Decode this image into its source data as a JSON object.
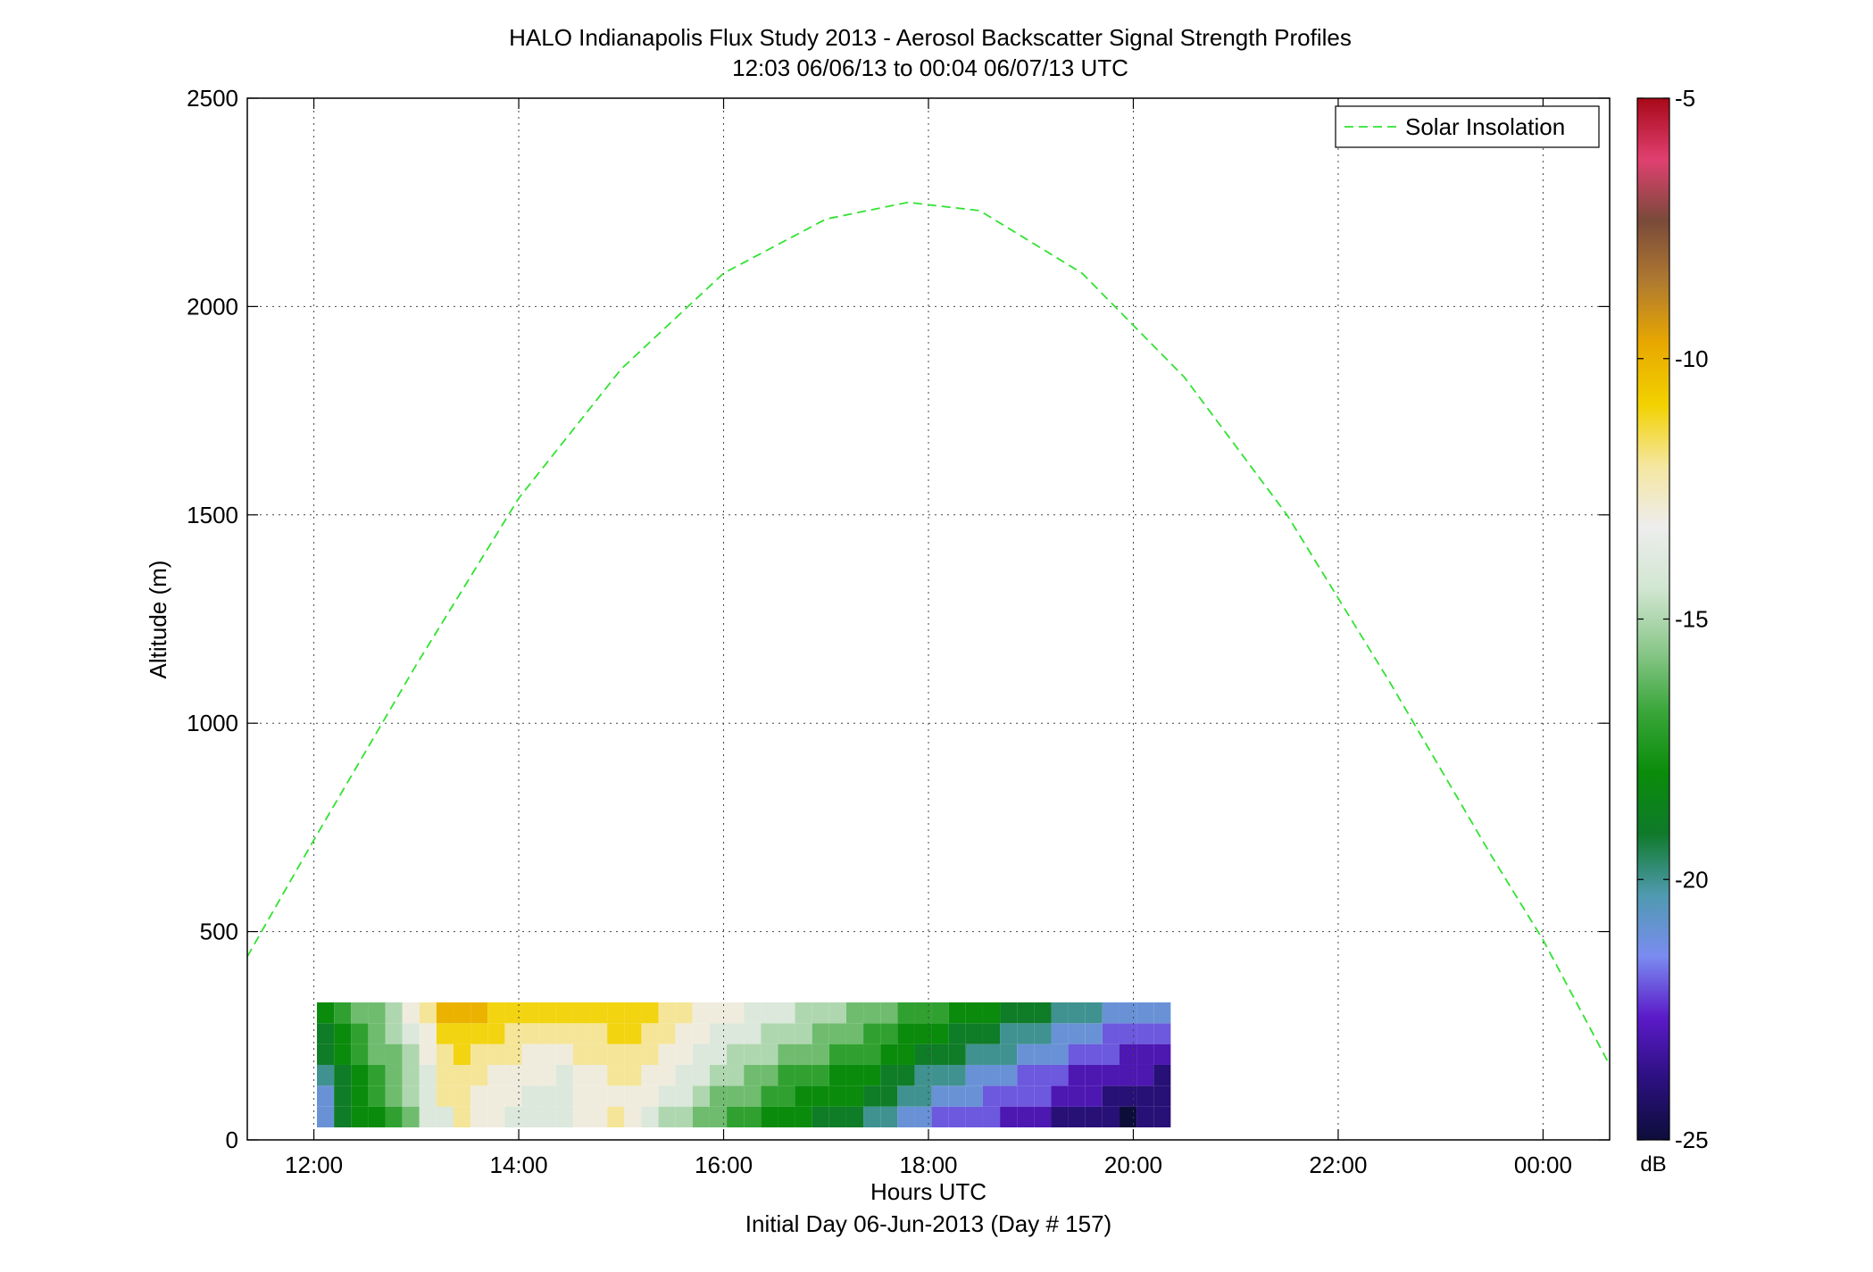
{
  "chart_data": {
    "type": "heatmap",
    "title": "HALO Indianapolis Flux Study 2013 - Aerosol Backscatter Signal Strength Profiles",
    "subtitle": "12:03 06/06/13 to 00:04 06/07/13  UTC",
    "xlabel": "Hours UTC",
    "xlabel2": "Initial Day 06-Jun-2013 (Day # 157)",
    "ylabel": "Altitude (m)",
    "xlim": [
      11.35,
      24.65
    ],
    "ylim": [
      0,
      2500
    ],
    "x_ticks": [
      12,
      14,
      16,
      18,
      20,
      22,
      24
    ],
    "x_tick_labels": [
      "12:00",
      "14:00",
      "16:00",
      "18:00",
      "20:00",
      "22:00",
      "00:00"
    ],
    "y_ticks": [
      0,
      500,
      1000,
      1500,
      2000,
      2500
    ],
    "y_tick_labels": [
      "0",
      "500",
      "1000",
      "1500",
      "2000",
      "2500"
    ],
    "grid": true,
    "legend": {
      "placement": "top-right",
      "entries": [
        "Solar Insolation"
      ]
    },
    "colorbar": {
      "label": "dB",
      "range": [
        -25,
        -5
      ],
      "ticks": [
        -5,
        -10,
        -15,
        -20,
        -25
      ],
      "tick_labels": [
        "-5",
        "-10",
        "-15",
        "-20",
        "-25"
      ],
      "colors": [
        "#0d0d3a",
        "#2c1080",
        "#5b1ac8",
        "#7a8cf0",
        "#4f9ab0",
        "#0f7a2a",
        "#0a8c0a",
        "#3aa63a",
        "#8cc88c",
        "#d2e6d2",
        "#ededed",
        "#f5e6a0",
        "#f2d200",
        "#e8a800",
        "#b07a30",
        "#7a4a3a",
        "#e04070",
        "#a80818"
      ]
    },
    "solar_insolation": {
      "name": "Solar Insolation",
      "color": "#32e232",
      "x": [
        11.35,
        12.0,
        13.0,
        14.0,
        15.0,
        16.0,
        17.0,
        17.8,
        18.5,
        19.5,
        20.5,
        21.5,
        22.5,
        23.5,
        24.0,
        24.65
      ],
      "y": [
        440,
        720,
        1140,
        1540,
        1850,
        2080,
        2210,
        2250,
        2230,
        2080,
        1830,
        1500,
        1100,
        680,
        480,
        180
      ]
    },
    "profiles": {
      "time_start": 12.03,
      "time_step": 0.1667,
      "altitude_start": 30,
      "altitude_step": 50,
      "values_db": [
        [
          -21,
          -19,
          -18,
          -18,
          -17,
          -16,
          -14,
          -14,
          -12,
          -13,
          -13,
          -14,
          -14,
          -14,
          -14,
          -13,
          -13,
          -12,
          -13,
          -14,
          -15,
          -15,
          -16,
          -16,
          -17,
          -17,
          -18,
          -18,
          -18,
          -19,
          -19,
          -19,
          -20,
          -20,
          -21,
          -21,
          -22,
          -22,
          -22,
          -22,
          -23,
          -23,
          -23,
          -24,
          -24,
          -24,
          -24,
          -25,
          -24,
          -24
        ],
        [
          -21,
          -19,
          -18,
          -17,
          -16,
          -15,
          -14,
          -12,
          -12,
          -13,
          -13,
          -13,
          -14,
          -14,
          -14,
          -13,
          -13,
          -13,
          -13,
          -13,
          -14,
          -14,
          -15,
          -16,
          -16,
          -16,
          -17,
          -17,
          -18,
          -18,
          -18,
          -18,
          -19,
          -19,
          -20,
          -20,
          -21,
          -21,
          -21,
          -22,
          -22,
          -22,
          -22,
          -23,
          -23,
          -23,
          -24,
          -24,
          -24,
          -24
        ],
        [
          -20,
          -19,
          -18,
          -17,
          -16,
          -15,
          -14,
          -12,
          -12,
          -12,
          -13,
          -13,
          -13,
          -13,
          -14,
          -13,
          -13,
          -12,
          -12,
          -13,
          -13,
          -14,
          -14,
          -15,
          -15,
          -16,
          -16,
          -17,
          -17,
          -17,
          -18,
          -18,
          -18,
          -19,
          -19,
          -20,
          -20,
          -20,
          -21,
          -21,
          -21,
          -22,
          -22,
          -22,
          -23,
          -23,
          -23,
          -23,
          -23,
          -24
        ],
        [
          -19,
          -18,
          -17,
          -16,
          -16,
          -15,
          -13,
          -12,
          -11,
          -12,
          -12,
          -12,
          -13,
          -13,
          -13,
          -12,
          -12,
          -12,
          -12,
          -12,
          -13,
          -13,
          -14,
          -14,
          -15,
          -15,
          -15,
          -16,
          -16,
          -16,
          -17,
          -17,
          -17,
          -18,
          -18,
          -19,
          -19,
          -19,
          -20,
          -20,
          -20,
          -21,
          -21,
          -21,
          -22,
          -22,
          -22,
          -23,
          -23,
          -23
        ],
        [
          -19,
          -18,
          -17,
          -16,
          -15,
          -14,
          -13,
          -11,
          -11,
          -11,
          -11,
          -12,
          -12,
          -12,
          -12,
          -12,
          -12,
          -11,
          -11,
          -12,
          -12,
          -13,
          -13,
          -14,
          -14,
          -14,
          -15,
          -15,
          -15,
          -16,
          -16,
          -16,
          -17,
          -17,
          -18,
          -18,
          -18,
          -19,
          -19,
          -19,
          -20,
          -20,
          -20,
          -21,
          -21,
          -21,
          -22,
          -22,
          -22,
          -22
        ],
        [
          -18,
          -17,
          -16,
          -16,
          -15,
          -13,
          -12,
          -10,
          -10,
          -10,
          -11,
          -11,
          -11,
          -11,
          -11,
          -11,
          -11,
          -11,
          -11,
          -11,
          -12,
          -12,
          -13,
          -13,
          -13,
          -14,
          -14,
          -14,
          -15,
          -15,
          -15,
          -16,
          -16,
          -16,
          -17,
          -17,
          -17,
          -18,
          -18,
          -18,
          -19,
          -19,
          -19,
          -20,
          -20,
          -20,
          -21,
          -21,
          -21,
          -21
        ]
      ]
    }
  }
}
